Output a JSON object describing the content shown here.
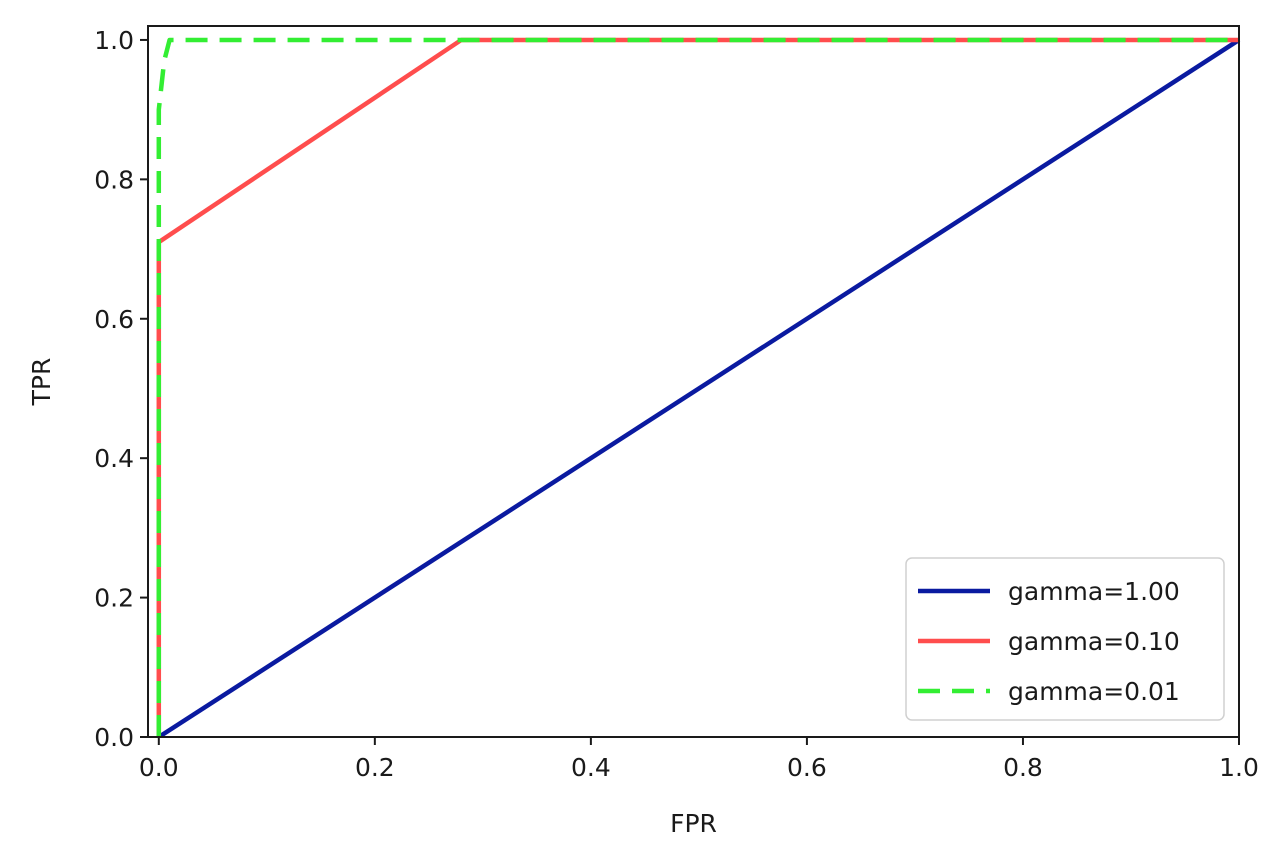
{
  "chart_data": {
    "type": "line",
    "title": "",
    "xlabel": "FPR",
    "ylabel": "TPR",
    "xlim": [
      -0.01,
      1.0
    ],
    "ylim": [
      0.0,
      1.02
    ],
    "x_ticks": [
      "0.0",
      "0.2",
      "0.4",
      "0.6",
      "0.8",
      "1.0"
    ],
    "y_ticks": [
      "0.0",
      "0.2",
      "0.4",
      "0.6",
      "0.8",
      "1.0"
    ],
    "x_tick_values": [
      0.0,
      0.2,
      0.4,
      0.6,
      0.8,
      1.0
    ],
    "y_tick_values": [
      0.0,
      0.2,
      0.4,
      0.6,
      0.8,
      1.0
    ],
    "grid": false,
    "legend_position": "lower-right",
    "series": [
      {
        "name": "gamma=1.00",
        "color": "#0a1aa0",
        "dash": "solid",
        "x": [
          0.0,
          1.0
        ],
        "y": [
          0.0,
          1.0
        ]
      },
      {
        "name": "gamma=0.10",
        "color": "#ff4d4d",
        "dash": "solid",
        "x": [
          0.0,
          0.0,
          0.28,
          1.0
        ],
        "y": [
          0.0,
          0.71,
          1.0,
          1.0
        ]
      },
      {
        "name": "gamma=0.01",
        "color": "#33ee33",
        "dash": "dashed",
        "x": [
          0.0,
          0.0,
          0.005,
          0.01,
          1.0
        ],
        "y": [
          0.0,
          0.9,
          0.97,
          1.0,
          1.0
        ]
      }
    ]
  }
}
